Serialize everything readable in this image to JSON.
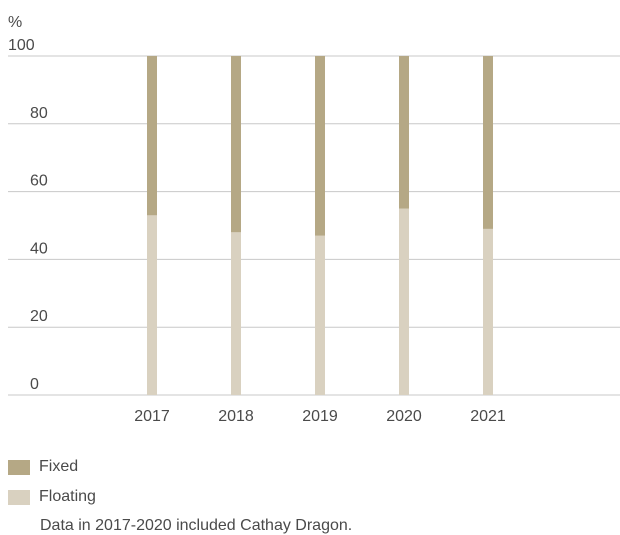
{
  "colors": {
    "fixed": "#b5a885",
    "floating": "#d9d1c0",
    "grid": "#c8c8c8",
    "text": "#4a4a4a"
  },
  "chart_data": {
    "type": "bar",
    "stacked": true,
    "unit_label": "%",
    "categories": [
      "2017",
      "2018",
      "2019",
      "2020",
      "2021"
    ],
    "series": [
      {
        "name": "Floating",
        "values": [
          53,
          48,
          47,
          55,
          49
        ]
      },
      {
        "name": "Fixed",
        "values": [
          47,
          52,
          53,
          45,
          51
        ]
      }
    ],
    "ylim": [
      0,
      100
    ],
    "yticks": [
      0,
      20,
      40,
      60,
      80,
      100
    ],
    "grid": true,
    "legend_position": "bottom-left"
  },
  "legend": [
    {
      "label": "Fixed",
      "color_key": "fixed"
    },
    {
      "label": "Floating",
      "color_key": "floating"
    }
  ],
  "note": "Data in 2017-2020 included Cathay Dragon."
}
